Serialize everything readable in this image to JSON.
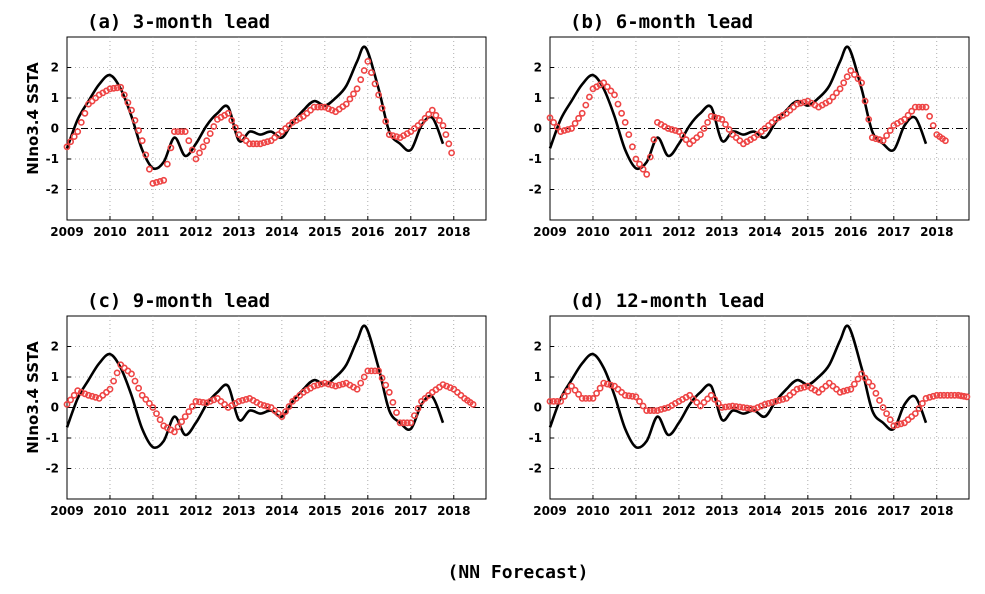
{
  "figure": {
    "caption": "(NN Forecast)",
    "ylabel": "NIno3.4 SSTA",
    "colors": {
      "observed": "#000000",
      "forecast": "#ee4444",
      "grid": "#999999",
      "zero": "#000000"
    }
  },
  "chart_data": [
    {
      "type": "line",
      "title": "(a) 3-month lead",
      "ylabel": "NIno3.4 SSTA",
      "xlim": [
        2009,
        2018.75
      ],
      "ylim": [
        -3,
        3
      ],
      "xticks": [
        "2009",
        "2010",
        "2011",
        "2012",
        "2013",
        "2014",
        "2015",
        "2016",
        "2017",
        "2018"
      ],
      "yticks": [
        "-2",
        "-1",
        "0",
        "1",
        "2"
      ],
      "grid": true,
      "series": [
        {
          "style": "line",
          "x": [
            2009.0,
            2009.25,
            2009.5,
            2009.75,
            2010.0,
            2010.25,
            2010.5,
            2010.75,
            2011.0,
            2011.25,
            2011.5,
            2011.75,
            2012.0,
            2012.25,
            2012.5,
            2012.75,
            2013.0,
            2013.25,
            2013.5,
            2013.75,
            2014.0,
            2014.25,
            2014.5,
            2014.75,
            2015.0,
            2015.25,
            2015.5,
            2015.75,
            2015.95,
            2016.25,
            2016.5,
            2016.75,
            2017.0,
            2017.25,
            2017.5,
            2017.75
          ],
          "y": [
            -0.65,
            0.3,
            0.9,
            1.45,
            1.75,
            1.3,
            0.4,
            -0.7,
            -1.3,
            -1.1,
            -0.3,
            -0.9,
            -0.5,
            0.1,
            0.5,
            0.7,
            -0.4,
            -0.1,
            -0.2,
            -0.1,
            -0.3,
            0.2,
            0.6,
            0.9,
            0.75,
            1.0,
            1.4,
            2.2,
            2.65,
            1.3,
            -0.1,
            -0.5,
            -0.7,
            0.1,
            0.35,
            -0.5
          ]
        },
        {
          "style": "circles",
          "x": [
            2009.0,
            2009.25,
            2009.5,
            2009.75,
            2010.0,
            2010.25,
            2010.5,
            2010.75,
            2011.0,
            2011.25,
            2011.5,
            2011.75,
            2012.0,
            2012.25,
            2012.5,
            2012.75,
            2013.0,
            2013.25,
            2013.5,
            2013.75,
            2014.0,
            2014.25,
            2014.5,
            2014.75,
            2015.0,
            2015.25,
            2015.5,
            2015.75,
            2016.0,
            2016.25,
            2016.5,
            2016.75,
            2017.0,
            2017.25,
            2017.5,
            2017.75,
            2017.95
          ],
          "y": [
            -0.6,
            -0.1,
            0.8,
            1.1,
            1.3,
            1.35,
            0.6,
            -0.4,
            -1.8,
            -1.7,
            -0.1,
            -0.1,
            -1.0,
            -0.4,
            0.3,
            0.5,
            -0.2,
            -0.5,
            -0.5,
            -0.4,
            -0.1,
            0.2,
            0.4,
            0.7,
            0.7,
            0.55,
            0.8,
            1.3,
            2.2,
            1.1,
            -0.2,
            -0.3,
            -0.1,
            0.2,
            0.6,
            0.1,
            -0.8
          ]
        }
      ]
    },
    {
      "type": "line",
      "title": "(b) 6-month lead",
      "ylabel": "",
      "xlim": [
        2009,
        2018.75
      ],
      "ylim": [
        -3,
        3
      ],
      "xticks": [
        "2009",
        "2010",
        "2011",
        "2012",
        "2013",
        "2014",
        "2015",
        "2016",
        "2017",
        "2018"
      ],
      "yticks": [
        "-2",
        "-1",
        "0",
        "1",
        "2"
      ],
      "grid": true,
      "series": [
        {
          "style": "line",
          "x": [
            2009.0,
            2009.25,
            2009.5,
            2009.75,
            2010.0,
            2010.25,
            2010.5,
            2010.75,
            2011.0,
            2011.25,
            2011.5,
            2011.75,
            2012.0,
            2012.25,
            2012.5,
            2012.75,
            2013.0,
            2013.25,
            2013.5,
            2013.75,
            2014.0,
            2014.25,
            2014.5,
            2014.75,
            2015.0,
            2015.25,
            2015.5,
            2015.75,
            2015.95,
            2016.25,
            2016.5,
            2016.75,
            2017.0,
            2017.25,
            2017.5,
            2017.75
          ],
          "y": [
            -0.65,
            0.3,
            0.9,
            1.45,
            1.75,
            1.3,
            0.4,
            -0.7,
            -1.3,
            -1.1,
            -0.3,
            -0.9,
            -0.5,
            0.1,
            0.5,
            0.7,
            -0.4,
            -0.1,
            -0.2,
            -0.1,
            -0.3,
            0.2,
            0.6,
            0.9,
            0.75,
            1.0,
            1.4,
            2.2,
            2.65,
            1.3,
            -0.1,
            -0.5,
            -0.7,
            0.1,
            0.35,
            -0.5
          ]
        },
        {
          "style": "circles",
          "x": [
            2009.0,
            2009.25,
            2009.5,
            2009.75,
            2010.0,
            2010.25,
            2010.5,
            2010.75,
            2011.0,
            2011.25,
            2011.5,
            2011.75,
            2012.0,
            2012.25,
            2012.5,
            2012.75,
            2013.0,
            2013.25,
            2013.5,
            2013.75,
            2014.0,
            2014.25,
            2014.5,
            2014.75,
            2015.0,
            2015.25,
            2015.5,
            2015.75,
            2016.0,
            2016.25,
            2016.5,
            2016.75,
            2017.0,
            2017.25,
            2017.5,
            2017.75,
            2018.0,
            2018.2
          ],
          "y": [
            0.35,
            -0.1,
            0.0,
            0.5,
            1.3,
            1.5,
            1.1,
            0.2,
            -1.0,
            -1.5,
            0.2,
            0.0,
            -0.1,
            -0.5,
            -0.2,
            0.4,
            0.3,
            -0.2,
            -0.5,
            -0.3,
            0.0,
            0.3,
            0.5,
            0.8,
            0.9,
            0.7,
            0.9,
            1.3,
            1.9,
            1.5,
            -0.3,
            -0.4,
            0.1,
            0.3,
            0.7,
            0.7,
            -0.2,
            -0.4
          ]
        }
      ]
    },
    {
      "type": "line",
      "title": "(c) 9-month lead",
      "ylabel": "NIno3.4 SSTA",
      "xlim": [
        2009,
        2018.75
      ],
      "ylim": [
        -3,
        3
      ],
      "xticks": [
        "2009",
        "2010",
        "2011",
        "2012",
        "2013",
        "2014",
        "2015",
        "2016",
        "2017",
        "2018"
      ],
      "yticks": [
        "-2",
        "-1",
        "0",
        "1",
        "2"
      ],
      "grid": true,
      "series": [
        {
          "style": "line",
          "x": [
            2009.0,
            2009.25,
            2009.5,
            2009.75,
            2010.0,
            2010.25,
            2010.5,
            2010.75,
            2011.0,
            2011.25,
            2011.5,
            2011.75,
            2012.0,
            2012.25,
            2012.5,
            2012.75,
            2013.0,
            2013.25,
            2013.5,
            2013.75,
            2014.0,
            2014.25,
            2014.5,
            2014.75,
            2015.0,
            2015.25,
            2015.5,
            2015.75,
            2015.95,
            2016.25,
            2016.5,
            2016.75,
            2017.0,
            2017.25,
            2017.5,
            2017.75
          ],
          "y": [
            -0.65,
            0.3,
            0.9,
            1.45,
            1.75,
            1.3,
            0.4,
            -0.7,
            -1.3,
            -1.1,
            -0.3,
            -0.9,
            -0.5,
            0.1,
            0.5,
            0.7,
            -0.4,
            -0.1,
            -0.2,
            -0.1,
            -0.3,
            0.2,
            0.6,
            0.9,
            0.75,
            1.0,
            1.4,
            2.2,
            2.65,
            1.3,
            -0.1,
            -0.5,
            -0.7,
            0.1,
            0.35,
            -0.5
          ]
        },
        {
          "style": "circles",
          "x": [
            2009.0,
            2009.25,
            2009.5,
            2009.75,
            2010.0,
            2010.25,
            2010.5,
            2010.75,
            2011.0,
            2011.25,
            2011.5,
            2011.75,
            2012.0,
            2012.25,
            2012.5,
            2012.75,
            2013.0,
            2013.25,
            2013.5,
            2013.75,
            2014.0,
            2014.25,
            2014.5,
            2014.75,
            2015.0,
            2015.25,
            2015.5,
            2015.75,
            2016.0,
            2016.25,
            2016.5,
            2016.75,
            2017.0,
            2017.25,
            2017.5,
            2017.75,
            2018.0,
            2018.25,
            2018.45
          ],
          "y": [
            0.1,
            0.55,
            0.4,
            0.3,
            0.6,
            1.4,
            1.1,
            0.4,
            0.0,
            -0.6,
            -0.8,
            -0.3,
            0.2,
            0.15,
            0.3,
            0.0,
            0.2,
            0.3,
            0.1,
            0.0,
            -0.3,
            0.2,
            0.5,
            0.7,
            0.8,
            0.7,
            0.8,
            0.6,
            1.2,
            1.2,
            0.5,
            -0.5,
            -0.5,
            0.2,
            0.5,
            0.75,
            0.6,
            0.3,
            0.1
          ]
        }
      ]
    },
    {
      "type": "line",
      "title": "(d) 12-month lead",
      "ylabel": "",
      "xlim": [
        2009,
        2018.75
      ],
      "ylim": [
        -3,
        3
      ],
      "xticks": [
        "2009",
        "2010",
        "2011",
        "2012",
        "2013",
        "2014",
        "2015",
        "2016",
        "2017",
        "2018"
      ],
      "yticks": [
        "-2",
        "-1",
        "0",
        "1",
        "2"
      ],
      "grid": true,
      "series": [
        {
          "style": "line",
          "x": [
            2009.0,
            2009.25,
            2009.5,
            2009.75,
            2010.0,
            2010.25,
            2010.5,
            2010.75,
            2011.0,
            2011.25,
            2011.5,
            2011.75,
            2012.0,
            2012.25,
            2012.5,
            2012.75,
            2013.0,
            2013.25,
            2013.5,
            2013.75,
            2014.0,
            2014.25,
            2014.5,
            2014.75,
            2015.0,
            2015.25,
            2015.5,
            2015.75,
            2015.95,
            2016.25,
            2016.5,
            2016.75,
            2017.0,
            2017.25,
            2017.5,
            2017.75
          ],
          "y": [
            -0.65,
            0.3,
            0.9,
            1.45,
            1.75,
            1.3,
            0.4,
            -0.7,
            -1.3,
            -1.1,
            -0.3,
            -0.9,
            -0.5,
            0.1,
            0.5,
            0.7,
            -0.4,
            -0.1,
            -0.2,
            -0.1,
            -0.3,
            0.2,
            0.6,
            0.9,
            0.75,
            1.0,
            1.4,
            2.2,
            2.65,
            1.3,
            -0.1,
            -0.5,
            -0.7,
            0.1,
            0.35,
            -0.5
          ]
        },
        {
          "style": "circles",
          "x": [
            2009.0,
            2009.25,
            2009.5,
            2009.75,
            2010.0,
            2010.25,
            2010.5,
            2010.75,
            2011.0,
            2011.25,
            2011.5,
            2011.75,
            2012.0,
            2012.25,
            2012.5,
            2012.75,
            2013.0,
            2013.25,
            2013.5,
            2013.75,
            2014.0,
            2014.25,
            2014.5,
            2014.75,
            2015.0,
            2015.25,
            2015.5,
            2015.75,
            2016.0,
            2016.25,
            2016.5,
            2016.75,
            2017.0,
            2017.25,
            2017.5,
            2017.75,
            2018.0,
            2018.25,
            2018.5,
            2018.7
          ],
          "y": [
            0.2,
            0.2,
            0.7,
            0.3,
            0.3,
            0.8,
            0.7,
            0.4,
            0.35,
            -0.1,
            -0.1,
            0.0,
            0.2,
            0.4,
            0.05,
            0.4,
            0.0,
            0.05,
            0.0,
            -0.05,
            0.1,
            0.2,
            0.3,
            0.6,
            0.7,
            0.5,
            0.8,
            0.5,
            0.6,
            1.1,
            0.7,
            0.0,
            -0.6,
            -0.5,
            -0.2,
            0.3,
            0.4,
            0.4,
            0.4,
            0.35
          ]
        }
      ]
    }
  ]
}
